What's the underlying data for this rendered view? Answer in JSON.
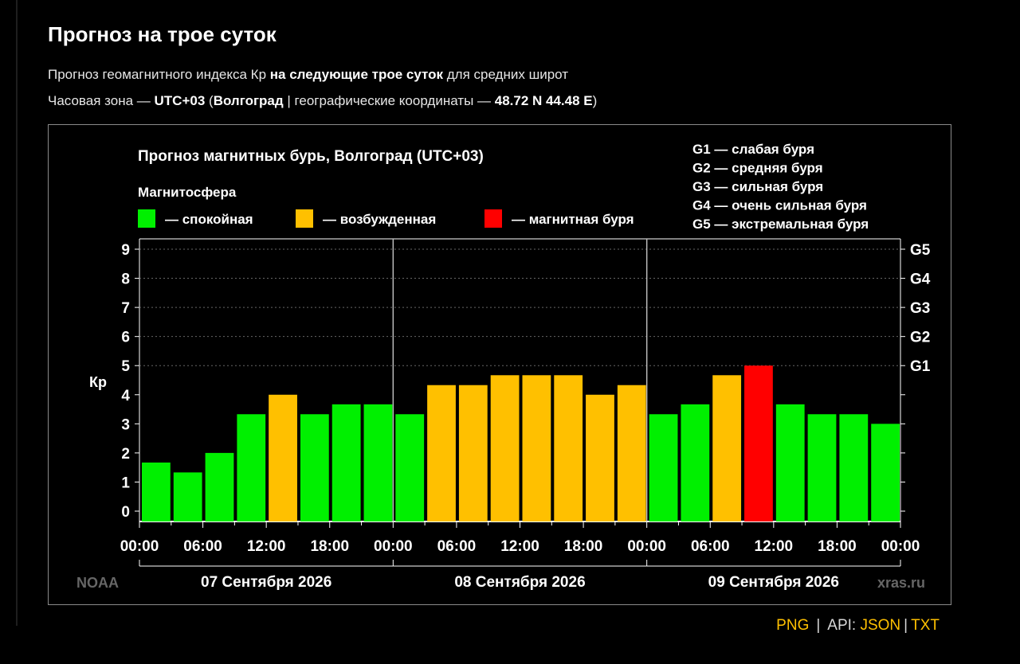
{
  "page": {
    "title": "Прогноз на трое суток",
    "line1_a": "Прогноз геомагнитного индекса Кр ",
    "line1_b": "на следующие трое суток",
    "line1_c": " для средних широт",
    "line2_a": "Часовая зона — ",
    "line2_b": "UTC+03",
    "line2_c": " (",
    "line2_d": "Волгоград",
    "line2_e": " | географические координаты — ",
    "line2_f": "48.72 N 44.48 E",
    "line2_g": ")"
  },
  "colors": {
    "quiet": "#00f000",
    "excited": "#ffc000",
    "storm": "#ff0000",
    "link": "#ffc000"
  },
  "legend": {
    "title": "Магнитосфера",
    "items": [
      {
        "label": "— спокойная",
        "color": "#00f000"
      },
      {
        "label": "— возбужденная",
        "color": "#ffc000"
      },
      {
        "label": "— магнитная буря",
        "color": "#ff0000"
      }
    ]
  },
  "g_legend": [
    "G1 — слабая буря",
    "G2 — средняя буря",
    "G3 — сильная буря",
    "G4 — очень сильная буря",
    "G5 — экстремальная буря"
  ],
  "chart_data": {
    "type": "bar",
    "title": "Прогноз магнитных бурь, Волгоград (UTC+03)",
    "ylabel": "Кр",
    "ylim": [
      0,
      9
    ],
    "yticks": [
      0,
      1,
      2,
      3,
      4,
      5,
      6,
      7,
      8,
      9
    ],
    "g_scale": [
      {
        "label": "G1",
        "kp": 5
      },
      {
        "label": "G2",
        "kp": 6
      },
      {
        "label": "G3",
        "kp": 7
      },
      {
        "label": "G4",
        "kp": 8
      },
      {
        "label": "G5",
        "kp": 9
      }
    ],
    "x_tick_labels": [
      "00:00",
      "06:00",
      "12:00",
      "18:00",
      "00:00",
      "06:00",
      "12:00",
      "18:00",
      "00:00",
      "06:00",
      "12:00",
      "18:00",
      "00:00"
    ],
    "days": [
      "07 Сентября 2026",
      "08 Сентября 2026",
      "09 Сентября 2026"
    ],
    "values": [
      1.67,
      1.33,
      2.0,
      3.33,
      4.0,
      3.33,
      3.67,
      3.67,
      3.33,
      4.33,
      4.33,
      4.67,
      4.67,
      4.67,
      4.0,
      4.33,
      3.33,
      3.67,
      4.67,
      5.0,
      3.67,
      3.33,
      3.33,
      3.0
    ],
    "levels": [
      "quiet",
      "quiet",
      "quiet",
      "quiet",
      "excited",
      "quiet",
      "quiet",
      "quiet",
      "quiet",
      "excited",
      "excited",
      "excited",
      "excited",
      "excited",
      "excited",
      "excited",
      "quiet",
      "quiet",
      "excited",
      "storm",
      "quiet",
      "quiet",
      "quiet",
      "quiet"
    ],
    "source_left": "NOAA",
    "source_right": "xras.ru"
  },
  "footer": {
    "png": "PNG",
    "sep": "|",
    "api": "API: ",
    "json": "JSON",
    "sep2": "|",
    "txt": "TXT"
  }
}
